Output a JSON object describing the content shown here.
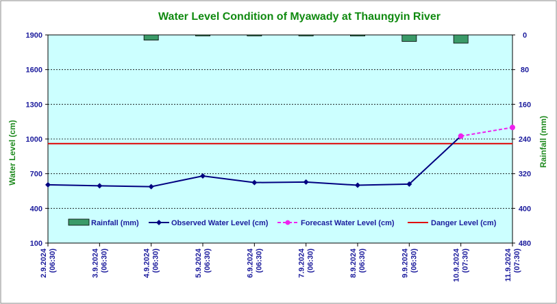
{
  "chart_data": {
    "type": "line",
    "title": "Water Level Condition of  Myawady at Thaungyin River",
    "ylabel": "Water Level (cm)",
    "y2label": "Rainfall (mm)",
    "ylim": [
      100,
      1900
    ],
    "y_ticks": [
      "100",
      "400",
      "700",
      "1000",
      "1300",
      "1600",
      "1900"
    ],
    "y2lim": [
      0,
      480
    ],
    "y2_inverted": true,
    "y2_ticks": [
      "0",
      "80",
      "160",
      "240",
      "320",
      "400",
      "480"
    ],
    "categories": [
      [
        "2.9.2024",
        "(06:30)"
      ],
      [
        "3.9.2024",
        "(06:30)"
      ],
      [
        "4.9.2024",
        "(06:30)"
      ],
      [
        "5.9.2024",
        "(06:30)"
      ],
      [
        "6.9.2024",
        "(06:30)"
      ],
      [
        "7.9.2024",
        "(06:30)"
      ],
      [
        "8.9.2024",
        "(06:30)"
      ],
      [
        "9.9.2024",
        "(06:30)"
      ],
      [
        "10.9.2024",
        "(07:30)"
      ],
      [
        "11.9.2024",
        "(07:30)"
      ]
    ],
    "grid": "horizontal-dashed",
    "legend_position": "inside-bottom",
    "series": [
      {
        "name": "Rainfall (mm)",
        "type": "bar",
        "axis": "right",
        "color": "#3a9a68",
        "values": [
          0,
          0,
          12,
          0.5,
          0.5,
          1.5,
          2.5,
          15,
          19,
          0
        ]
      },
      {
        "name": "Observed Water Level (cm)",
        "type": "line",
        "axis": "left",
        "color": "#000080",
        "values": [
          604,
          595,
          588,
          680,
          623,
          628,
          600,
          610,
          null,
          null
        ]
      },
      {
        "name": "Forecast Water Level (cm)",
        "type": "line-dashed",
        "axis": "left",
        "color": "#ee22ee",
        "values": [
          null,
          null,
          null,
          null,
          null,
          null,
          null,
          null,
          1025,
          1100
        ]
      },
      {
        "name": "Danger Level (cm)",
        "type": "line",
        "axis": "left",
        "color": "#e00000",
        "value": 960
      }
    ]
  }
}
